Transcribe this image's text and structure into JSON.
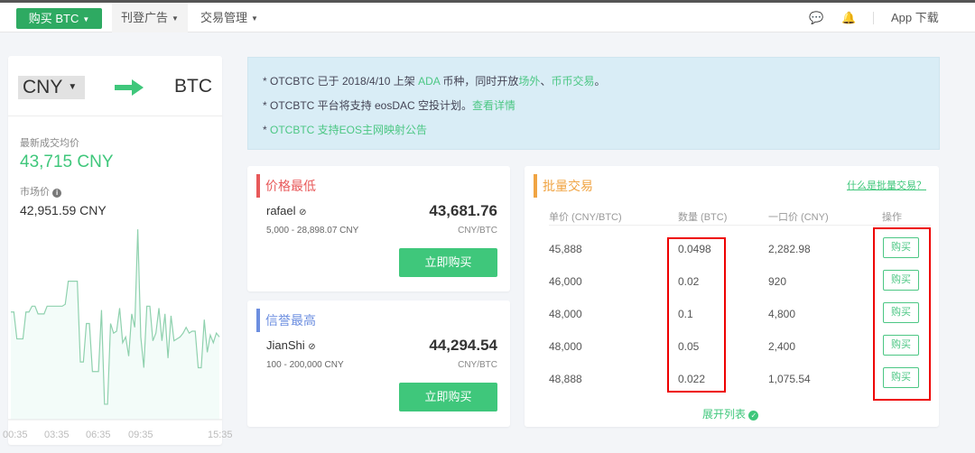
{
  "nav": {
    "buy_btn": "购买 BTC",
    "post_ad": "刊登广告",
    "trade_mgmt": "交易管理",
    "app_download": "App 下载",
    "icons": [
      "chat-icon",
      "bell-icon"
    ]
  },
  "converter": {
    "from": "CNY",
    "to": "BTC"
  },
  "stats": {
    "latest_avg_label": "最新成交均价",
    "latest_avg": "43,715 CNY",
    "market_label": "市场价",
    "market_price": "42,951.59 CNY"
  },
  "chart_data": {
    "type": "line",
    "x_ticks": [
      "00:35",
      "03:35",
      "06:35",
      "09:35",
      "15:35"
    ],
    "color": "#8fd1ae",
    "values": [
      56,
      56,
      42,
      42,
      42,
      56,
      56,
      59,
      59,
      55,
      55,
      55,
      59,
      59,
      59,
      59,
      59,
      59,
      60,
      72,
      72,
      72,
      72,
      30,
      30,
      50,
      50,
      25,
      25,
      25,
      57,
      8,
      8,
      50,
      45,
      46,
      58,
      40,
      43,
      33,
      55,
      48,
      99,
      43,
      27,
      59,
      59,
      41,
      45,
      58,
      41,
      55,
      32,
      54,
      41,
      42,
      43,
      45,
      48,
      45,
      46,
      46,
      27,
      27,
      52,
      35,
      44,
      40,
      45,
      43
    ]
  },
  "notices": [
    {
      "parts": [
        {
          "t": "* OTCBTC 已于 2018/4/10 上架 "
        },
        {
          "t": "ADA",
          "g": true
        },
        {
          "t": " 币种，同时开放"
        },
        {
          "t": "场外",
          "g": true
        },
        {
          "t": "、"
        },
        {
          "t": "币币交易",
          "g": true
        },
        {
          "t": "。"
        }
      ]
    },
    {
      "parts": [
        {
          "t": "* OTCBTC 平台将支持 eosDAC 空投计划。"
        },
        {
          "t": "查看详情",
          "g": true
        }
      ]
    },
    {
      "parts": [
        {
          "t": "* "
        },
        {
          "t": "OTCBTC 支持EOS主网映射公告",
          "g": true
        }
      ]
    }
  ],
  "lowest": {
    "title": "价格最低",
    "user": "rafael",
    "range": "5,000 - 28,898.07 CNY",
    "price": "43,681.76",
    "unit": "CNY/BTC",
    "button": "立即购买"
  },
  "trusted": {
    "title": "信誉最高",
    "user": "JianShi",
    "range": "100 - 200,000 CNY",
    "price": "44,294.54",
    "unit": "CNY/BTC",
    "button": "立即购买"
  },
  "batch": {
    "title": "批量交易",
    "help_link": "什么是批量交易？",
    "headers": [
      "单价 (CNY/BTC)",
      "数量 (BTC)",
      "一口价 (CNY)",
      "操作"
    ],
    "rows": [
      [
        "45,888",
        "0.0498",
        "2,282.98"
      ],
      [
        "46,000",
        "0.02",
        "920"
      ],
      [
        "48,000",
        "0.1",
        "4,800"
      ],
      [
        "48,000",
        "0.05",
        "2,400"
      ],
      [
        "48,888",
        "0.022",
        "1,075.54"
      ]
    ],
    "row_button": "购买",
    "expand": "展开列表"
  }
}
